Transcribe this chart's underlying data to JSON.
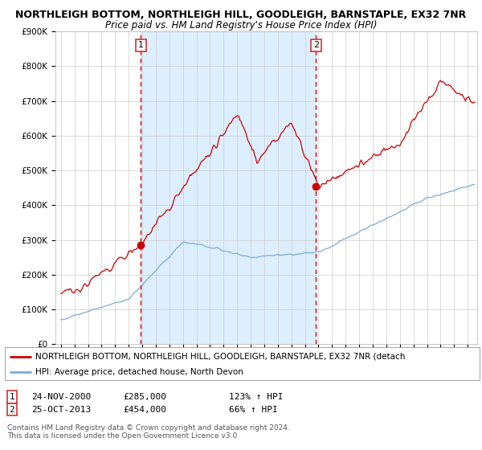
{
  "title1": "NORTHLEIGH BOTTOM, NORTHLEIGH HILL, GOODLEIGH, BARNSTAPLE, EX32 7NR",
  "title2": "Price paid vs. HM Land Registry's House Price Index (HPI)",
  "ylim": [
    0,
    900000
  ],
  "yticks": [
    0,
    100000,
    200000,
    300000,
    400000,
    500000,
    600000,
    700000,
    800000,
    900000
  ],
  "ytick_labels": [
    "£0",
    "£100K",
    "£200K",
    "£300K",
    "£400K",
    "£500K",
    "£600K",
    "£700K",
    "£800K",
    "£900K"
  ],
  "red_line_color": "#cc0000",
  "blue_line_color": "#7aadd4",
  "background_color": "#ffffff",
  "shading_color": "#ddeeff",
  "marker1_year": 2000.9,
  "marker1_value": 285000,
  "marker2_year": 2013.82,
  "marker2_value": 454000,
  "label1": "NORTHLEIGH BOTTOM, NORTHLEIGH HILL, GOODLEIGH, BARNSTAPLE, EX32 7NR (detach",
  "label2": "HPI: Average price, detached house, North Devon",
  "annotation1_date": "24-NOV-2000",
  "annotation1_price": "£285,000",
  "annotation1_hpi": "123% ↑ HPI",
  "annotation2_date": "25-OCT-2013",
  "annotation2_price": "£454,000",
  "annotation2_hpi": "66% ↑ HPI",
  "footer": "Contains HM Land Registry data © Crown copyright and database right 2024.\nThis data is licensed under the Open Government Licence v3.0."
}
